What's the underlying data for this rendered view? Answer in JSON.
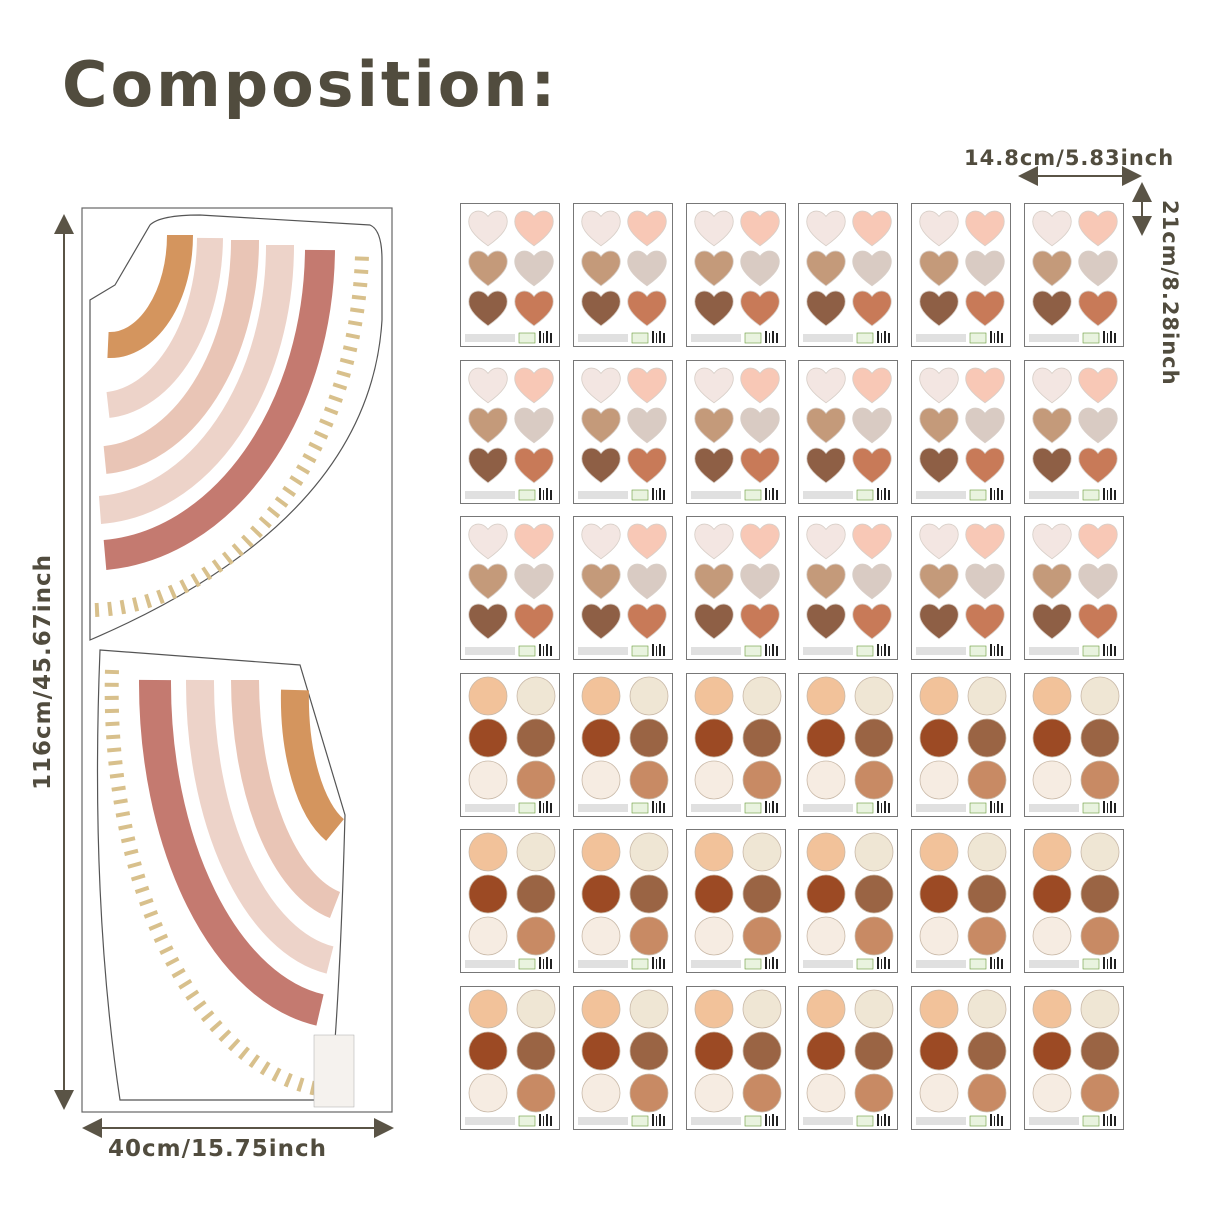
{
  "title": "Composition:",
  "dimensions": {
    "sheet_width": "14.8cm/5.83inch",
    "sheet_height": "21cm/8.28inch",
    "panel_height": "116cm/45.67inch",
    "panel_width": "40cm/15.75inch"
  },
  "sheets": {
    "rows": 6,
    "columns": 6,
    "heart_rows": 3,
    "circle_rows": 3,
    "heart_colors": [
      "#f3e6e2",
      "#f8c8b6",
      "#c49a7a",
      "#d9cbc3",
      "#8e5f45",
      "#c87a58"
    ],
    "circle_colors": [
      "#f2c29a",
      "#efe6d4",
      "#9c4a24",
      "#9a6444",
      "#f6ece2",
      "#c88a64"
    ]
  },
  "rainbow_colors": [
    "#c47a70",
    "#edd3c9",
    "#e9c5b6",
    "#d4955e",
    "#d8c08c"
  ],
  "line_color": "#5a5446"
}
